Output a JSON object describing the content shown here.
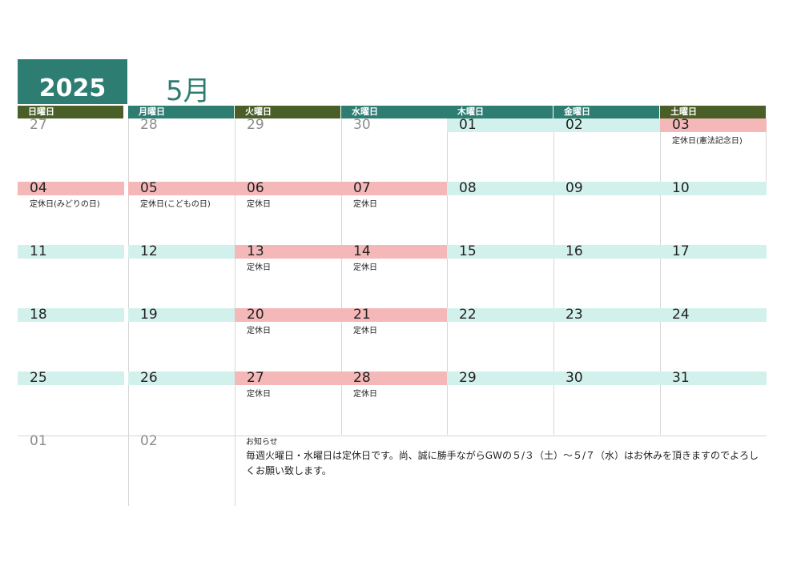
{
  "header": {
    "year": "2025",
    "month": "5月"
  },
  "weekdays": [
    "日曜日",
    "月曜日",
    "火曜日",
    "水曜日",
    "木曜日",
    "金曜日",
    "土曜日"
  ],
  "weeks": [
    [
      {
        "d": "27",
        "grey": true
      },
      {
        "d": "28",
        "grey": true
      },
      {
        "d": "29",
        "grey": true
      },
      {
        "d": "30",
        "grey": true
      },
      {
        "d": "01",
        "band": "green"
      },
      {
        "d": "02",
        "band": "green"
      },
      {
        "d": "03",
        "band": "pink",
        "note": "定休日(憲法記念日)"
      }
    ],
    [
      {
        "d": "04",
        "band": "pink",
        "note": "定休日(みどりの日)"
      },
      {
        "d": "05",
        "band": "pink",
        "note": "定休日(こどもの日)"
      },
      {
        "d": "06",
        "band": "pink",
        "note": "定休日"
      },
      {
        "d": "07",
        "band": "pink",
        "note": "定休日"
      },
      {
        "d": "08",
        "band": "green"
      },
      {
        "d": "09",
        "band": "green"
      },
      {
        "d": "10",
        "band": "green"
      }
    ],
    [
      {
        "d": "11",
        "band": "green"
      },
      {
        "d": "12",
        "band": "green"
      },
      {
        "d": "13",
        "band": "pink",
        "note": "定休日"
      },
      {
        "d": "14",
        "band": "pink",
        "note": "定休日"
      },
      {
        "d": "15",
        "band": "green"
      },
      {
        "d": "16",
        "band": "green"
      },
      {
        "d": "17",
        "band": "green"
      }
    ],
    [
      {
        "d": "18",
        "band": "green"
      },
      {
        "d": "19",
        "band": "green"
      },
      {
        "d": "20",
        "band": "pink",
        "note": "定休日"
      },
      {
        "d": "21",
        "band": "pink",
        "note": "定休日"
      },
      {
        "d": "22",
        "band": "green"
      },
      {
        "d": "23",
        "band": "green"
      },
      {
        "d": "24",
        "band": "green"
      }
    ],
    [
      {
        "d": "25",
        "band": "green"
      },
      {
        "d": "26",
        "band": "green"
      },
      {
        "d": "27",
        "band": "pink",
        "note": "定休日"
      },
      {
        "d": "28",
        "band": "pink",
        "note": "定休日"
      },
      {
        "d": "29",
        "band": "green"
      },
      {
        "d": "30",
        "band": "green"
      },
      {
        "d": "31",
        "band": "green"
      }
    ],
    [
      {
        "d": "01",
        "grey": true
      },
      {
        "d": "02",
        "grey": true
      }
    ]
  ],
  "notice": {
    "title": "お知らせ",
    "text": "毎週火曜日・水曜日は定休日です。尚、誠に勝手ながらGWの５/３（土）～５/７（水）はお休みを頂きますのでよろしくお願い致します。"
  },
  "colors": {
    "accent": "#2e7d72",
    "header_dark": "#4a5e28",
    "band_green": "#d3f1ec",
    "band_pink": "#f4b8b8"
  }
}
